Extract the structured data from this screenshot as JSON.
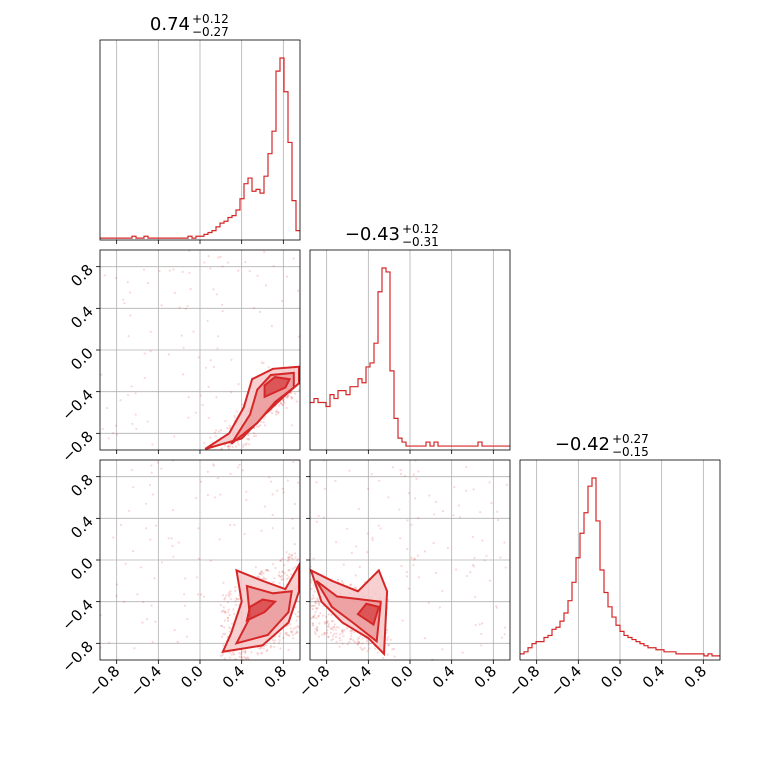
{
  "chart_data": {
    "type": "corner",
    "color": "#d62728",
    "grid": true,
    "axis_range": [
      -0.96,
      0.96
    ],
    "ticks": [
      "-0.8",
      "-0.4",
      "0.0",
      "0.4",
      "0.8"
    ],
    "tick_values": [
      -0.8,
      -0.4,
      0.0,
      0.4,
      0.8
    ],
    "titles": [
      {
        "median": "0.74",
        "plus": "+0.12",
        "minus": "−0.27"
      },
      {
        "median": "−0.43",
        "plus": "+0.12",
        "minus": "−0.31"
      },
      {
        "median": "−0.42",
        "plus": "+0.27",
        "minus": "−0.15"
      }
    ],
    "histograms": [
      {
        "bin_edges_range": [
          -0.96,
          0.96
        ],
        "counts": [
          1,
          1,
          1,
          1,
          1,
          1,
          1,
          1,
          2,
          1,
          1,
          2,
          1,
          1,
          1,
          1,
          1,
          1,
          1,
          1,
          1,
          1,
          2,
          1,
          2,
          2,
          3,
          4,
          5,
          7,
          9,
          10,
          12,
          13,
          16,
          22,
          30,
          33,
          26,
          27,
          25,
          34,
          46,
          58,
          90,
          97,
          79,
          52,
          21,
          5
        ]
      },
      {
        "bin_edges_range": [
          -0.96,
          0.96
        ],
        "counts": [
          12,
          13,
          12,
          12,
          11,
          14,
          13,
          15,
          15,
          14,
          16,
          16,
          18,
          17,
          21,
          22,
          27,
          40,
          46,
          45,
          20,
          8,
          3,
          2,
          1,
          1,
          1,
          1,
          1,
          2,
          1,
          2,
          1,
          1,
          1,
          1,
          1,
          1,
          1,
          1,
          1,
          1,
          2,
          1,
          1,
          1,
          1,
          1,
          1,
          1
        ]
      },
      {
        "bin_edges_range": [
          -0.96,
          0.96
        ],
        "counts": [
          3,
          4,
          6,
          8,
          9,
          9,
          11,
          12,
          15,
          16,
          19,
          23,
          29,
          38,
          50,
          62,
          72,
          85,
          89,
          68,
          44,
          33,
          26,
          21,
          17,
          14,
          12,
          11,
          10,
          9,
          8,
          7,
          6,
          6,
          5,
          5,
          4,
          4,
          4,
          3,
          3,
          3,
          3,
          3,
          3,
          3,
          2,
          3,
          2,
          2
        ]
      }
    ],
    "pairs": [
      {
        "x": 0,
        "y": 1,
        "contour_levels": 3,
        "note_trend": "positive ridge toward high x"
      },
      {
        "x": 0,
        "y": 2,
        "contour_levels": 3
      },
      {
        "x": 1,
        "y": 2,
        "contour_levels": 3
      }
    ]
  }
}
